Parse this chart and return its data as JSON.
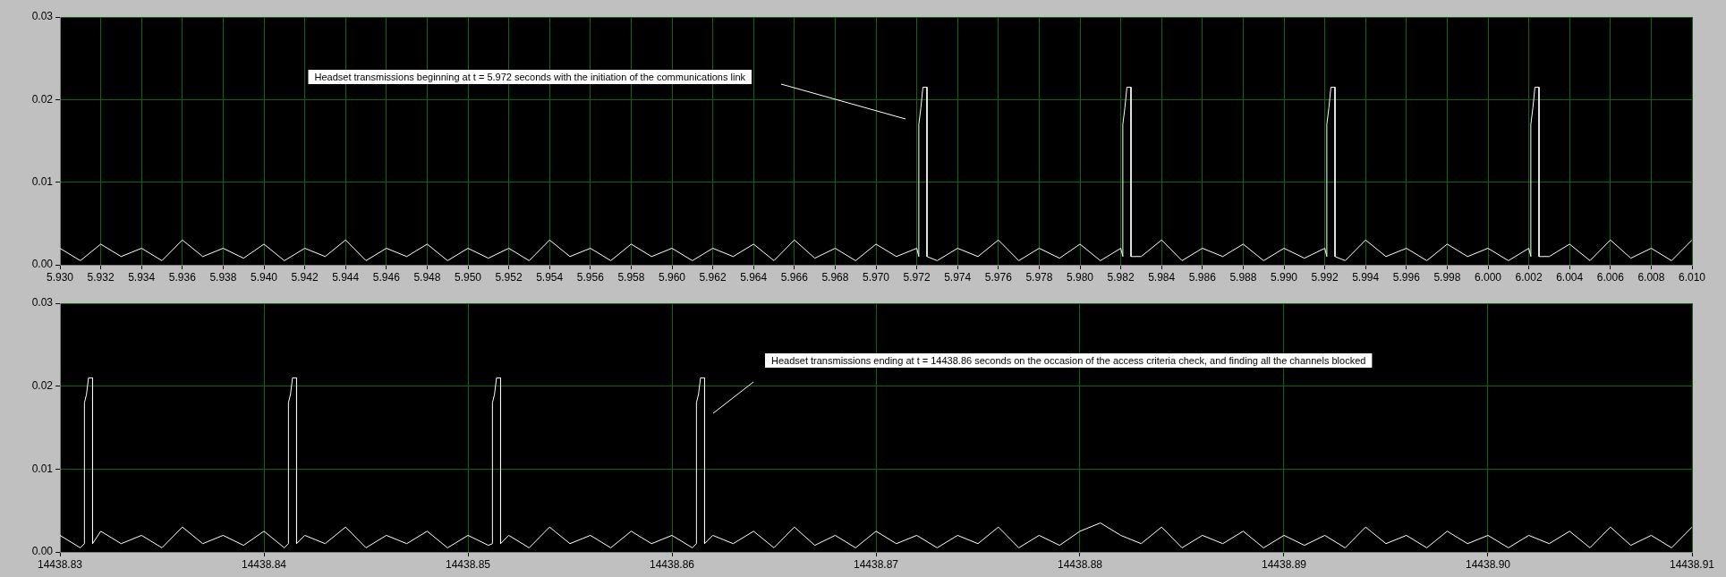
{
  "chart_data": [
    {
      "type": "line",
      "marker": "none",
      "grid": true,
      "xlim": [
        5.93,
        6.01
      ],
      "xticks": [
        {
          "value": 5.93,
          "label": "5.930"
        },
        {
          "value": 5.932,
          "label": "5.932"
        },
        {
          "value": 5.934,
          "label": "5.934"
        },
        {
          "value": 5.936,
          "label": "5.936"
        },
        {
          "value": 5.938,
          "label": "5.938"
        },
        {
          "value": 5.94,
          "label": "5.940"
        },
        {
          "value": 5.942,
          "label": "5.942"
        },
        {
          "value": 5.944,
          "label": "5.944"
        },
        {
          "value": 5.946,
          "label": "5.946"
        },
        {
          "value": 5.948,
          "label": "5.948"
        },
        {
          "value": 5.95,
          "label": "5.950"
        },
        {
          "value": 5.952,
          "label": "5.952"
        },
        {
          "value": 5.954,
          "label": "5.954"
        },
        {
          "value": 5.956,
          "label": "5.956"
        },
        {
          "value": 5.958,
          "label": "5.958"
        },
        {
          "value": 5.96,
          "label": "5.960"
        },
        {
          "value": 5.962,
          "label": "5.962"
        },
        {
          "value": 5.964,
          "label": "5.964"
        },
        {
          "value": 5.966,
          "label": "5.966"
        },
        {
          "value": 5.968,
          "label": "5.968"
        },
        {
          "value": 5.97,
          "label": "5.970"
        },
        {
          "value": 5.972,
          "label": "5.972"
        },
        {
          "value": 5.974,
          "label": "5.974"
        },
        {
          "value": 5.976,
          "label": "5.976"
        },
        {
          "value": 5.978,
          "label": "5.978"
        },
        {
          "value": 5.98,
          "label": "5.980"
        },
        {
          "value": 5.982,
          "label": "5.982"
        },
        {
          "value": 5.984,
          "label": "5.984"
        },
        {
          "value": 5.986,
          "label": "5.986"
        },
        {
          "value": 5.988,
          "label": "5.988"
        },
        {
          "value": 5.99,
          "label": "5.990"
        },
        {
          "value": 5.992,
          "label": "5.992"
        },
        {
          "value": 5.994,
          "label": "5.994"
        },
        {
          "value": 5.996,
          "label": "5.996"
        },
        {
          "value": 5.998,
          "label": "5.998"
        },
        {
          "value": 6.0,
          "label": "6.000"
        },
        {
          "value": 6.002,
          "label": "6.002"
        },
        {
          "value": 6.004,
          "label": "6.004"
        },
        {
          "value": 6.006,
          "label": "6.006"
        },
        {
          "value": 6.008,
          "label": "6.008"
        },
        {
          "value": 6.01,
          "label": "6.010"
        }
      ],
      "ylim": [
        0,
        0.03
      ],
      "yticks": [
        {
          "value": 0,
          "label": "0.00"
        },
        {
          "value": 0.01,
          "label": "0.01"
        },
        {
          "value": 0.02,
          "label": "0.02"
        },
        {
          "value": 0.03,
          "label": "0.03"
        }
      ],
      "annotations": [
        "Headset transmissions beginning at t = 5.972 seconds with the initiation of the communications link"
      ],
      "series": [
        {
          "color": "#ffffff",
          "x": [
            5.93,
            5.931,
            5.932,
            5.933,
            5.934,
            5.935,
            5.936,
            5.937,
            5.938,
            5.939,
            5.94,
            5.941,
            5.942,
            5.943,
            5.944,
            5.945,
            5.946,
            5.947,
            5.948,
            5.949,
            5.95,
            5.951,
            5.952,
            5.953,
            5.954,
            5.955,
            5.956,
            5.957,
            5.958,
            5.959,
            5.96,
            5.961,
            5.962,
            5.963,
            5.964,
            5.965,
            5.966,
            5.967,
            5.968,
            5.969,
            5.97,
            5.971,
            5.972,
            5.9721,
            5.9721,
            5.9722,
            5.9723,
            5.9725,
            5.9725,
            5.973,
            5.974,
            5.975,
            5.976,
            5.977,
            5.978,
            5.979,
            5.98,
            5.981,
            5.982,
            5.9821,
            5.9821,
            5.9822,
            5.9823,
            5.9825,
            5.9825,
            5.983,
            5.984,
            5.985,
            5.986,
            5.987,
            5.988,
            5.989,
            5.99,
            5.991,
            5.992,
            5.9921,
            5.9921,
            5.9922,
            5.9923,
            5.9925,
            5.9925,
            5.993,
            5.994,
            5.995,
            5.996,
            5.997,
            5.998,
            5.999,
            6.0,
            6.001,
            6.002,
            6.0021,
            6.0021,
            6.0022,
            6.0023,
            6.0025,
            6.0025,
            6.003,
            6.004,
            6.005,
            6.006,
            6.007,
            6.008,
            6.009,
            6.01
          ],
          "values": [
            0.002,
            0.0005,
            0.0025,
            0.001,
            0.002,
            0.0005,
            0.003,
            0.001,
            0.002,
            0.0008,
            0.0025,
            0.0005,
            0.002,
            0.001,
            0.003,
            0.0005,
            0.002,
            0.001,
            0.0025,
            0.0005,
            0.002,
            0.0008,
            0.002,
            0.0005,
            0.003,
            0.001,
            0.002,
            0.0005,
            0.0025,
            0.001,
            0.002,
            0.0005,
            0.002,
            0.001,
            0.0025,
            0.0005,
            0.003,
            0.0008,
            0.002,
            0.0005,
            0.0025,
            0.001,
            0.002,
            0.001,
            0.017,
            0.019,
            0.0215,
            0.0215,
            0.001,
            0.0005,
            0.002,
            0.001,
            0.003,
            0.0005,
            0.002,
            0.0008,
            0.0025,
            0.0005,
            0.002,
            0.001,
            0.017,
            0.019,
            0.0215,
            0.0215,
            0.001,
            0.001,
            0.003,
            0.0005,
            0.002,
            0.001,
            0.0025,
            0.0005,
            0.002,
            0.0008,
            0.002,
            0.001,
            0.017,
            0.019,
            0.0215,
            0.0215,
            0.001,
            0.0005,
            0.003,
            0.001,
            0.002,
            0.0005,
            0.0025,
            0.001,
            0.002,
            0.0005,
            0.002,
            0.001,
            0.017,
            0.019,
            0.0215,
            0.0215,
            0.001,
            0.001,
            0.0025,
            0.0005,
            0.003,
            0.0008,
            0.002,
            0.0005,
            0.003
          ]
        }
      ]
    },
    {
      "type": "line",
      "marker": "none",
      "grid": true,
      "xlim": [
        14438.83,
        14438.91
      ],
      "xticks": [
        14438.83,
        14438.84,
        14438.85,
        14438.86,
        14438.87,
        14438.88,
        14438.89,
        {
          "value": 14438.9,
          "label": "14438.90"
        },
        14438.91
      ],
      "ylim": [
        0,
        0.03
      ],
      "yticks": [
        {
          "value": 0,
          "label": "0.00"
        },
        {
          "value": 0.01,
          "label": "0.01"
        },
        {
          "value": 0.02,
          "label": "0.02"
        },
        {
          "value": 0.03,
          "label": "0.03"
        }
      ],
      "annotations": [
        "Headset transmissions ending at t = 14438.86 seconds on the occasion of the access criteria check, and finding all the channels blocked"
      ],
      "series": [
        {
          "color": "#ffffff",
          "x": [
            14438.83,
            14438.831,
            14438.8312,
            14438.8312,
            14438.8313,
            14438.8314,
            14438.8316,
            14438.8316,
            14438.832,
            14438.833,
            14438.834,
            14438.835,
            14438.836,
            14438.837,
            14438.838,
            14438.839,
            14438.84,
            14438.841,
            14438.8412,
            14438.8412,
            14438.8413,
            14438.8414,
            14438.8416,
            14438.8416,
            14438.842,
            14438.843,
            14438.844,
            14438.845,
            14438.846,
            14438.847,
            14438.848,
            14438.849,
            14438.85,
            14438.851,
            14438.8512,
            14438.8512,
            14438.8513,
            14438.8514,
            14438.8516,
            14438.8516,
            14438.852,
            14438.853,
            14438.854,
            14438.855,
            14438.856,
            14438.857,
            14438.858,
            14438.859,
            14438.86,
            14438.861,
            14438.8612,
            14438.8612,
            14438.8613,
            14438.8614,
            14438.8616,
            14438.8616,
            14438.862,
            14438.863,
            14438.864,
            14438.865,
            14438.866,
            14438.867,
            14438.868,
            14438.869,
            14438.87,
            14438.871,
            14438.872,
            14438.873,
            14438.874,
            14438.875,
            14438.876,
            14438.877,
            14438.878,
            14438.879,
            14438.88,
            14438.881,
            14438.882,
            14438.883,
            14438.884,
            14438.885,
            14438.886,
            14438.887,
            14438.888,
            14438.889,
            14438.89,
            14438.891,
            14438.892,
            14438.893,
            14438.894,
            14438.895,
            14438.896,
            14438.897,
            14438.898,
            14438.899,
            14438.9,
            14438.901,
            14438.902,
            14438.903,
            14438.904,
            14438.905,
            14438.906,
            14438.907,
            14438.908,
            14438.909,
            14438.91
          ],
          "values": [
            0.002,
            0.0005,
            0.001,
            0.018,
            0.019,
            0.021,
            0.021,
            0.001,
            0.0025,
            0.001,
            0.002,
            0.0005,
            0.003,
            0.001,
            0.002,
            0.0008,
            0.0025,
            0.0005,
            0.001,
            0.018,
            0.019,
            0.021,
            0.021,
            0.001,
            0.002,
            0.001,
            0.003,
            0.0005,
            0.002,
            0.001,
            0.0025,
            0.0005,
            0.002,
            0.0008,
            0.001,
            0.018,
            0.019,
            0.021,
            0.021,
            0.001,
            0.002,
            0.0005,
            0.003,
            0.001,
            0.002,
            0.0005,
            0.0025,
            0.001,
            0.002,
            0.0005,
            0.001,
            0.018,
            0.019,
            0.021,
            0.021,
            0.001,
            0.002,
            0.001,
            0.0025,
            0.0005,
            0.003,
            0.0008,
            0.002,
            0.0005,
            0.0025,
            0.001,
            0.002,
            0.0005,
            0.002,
            0.001,
            0.003,
            0.0005,
            0.002,
            0.0008,
            0.0025,
            0.0035,
            0.002,
            0.001,
            0.003,
            0.0005,
            0.002,
            0.001,
            0.0025,
            0.0005,
            0.002,
            0.0008,
            0.002,
            0.0005,
            0.003,
            0.001,
            0.002,
            0.0005,
            0.0025,
            0.001,
            0.002,
            0.0005,
            0.002,
            0.001,
            0.0025,
            0.0005,
            0.003,
            0.0008,
            0.002,
            0.0005,
            0.003
          ]
        }
      ]
    }
  ]
}
